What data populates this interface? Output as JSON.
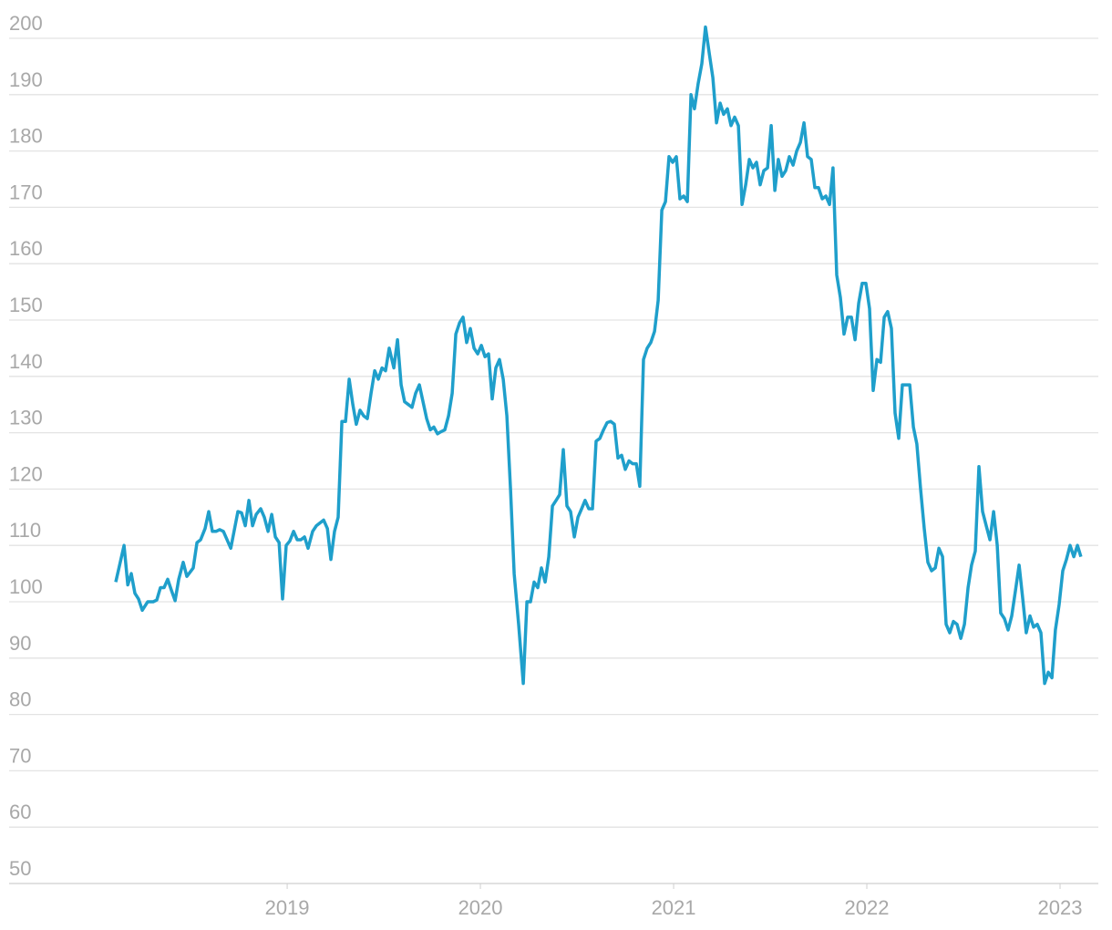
{
  "chart_data": {
    "type": "line",
    "x": [
      2018.113,
      2018.156,
      2018.175,
      2018.193,
      2018.212,
      2018.231,
      2018.25,
      2018.278,
      2018.307,
      2018.325,
      2018.344,
      2018.363,
      2018.382,
      2018.401,
      2018.42,
      2018.439,
      2018.462,
      2018.481,
      2018.514,
      2018.533,
      2018.552,
      2018.575,
      2018.594,
      2018.613,
      2018.632,
      2018.651,
      2018.67,
      2018.708,
      2018.745,
      2018.764,
      2018.783,
      2018.802,
      2018.821,
      2018.84,
      2018.863,
      2018.882,
      2018.901,
      2018.92,
      2018.939,
      2018.958,
      2018.976,
      2018.995,
      2019.014,
      2019.033,
      2019.052,
      2019.071,
      2019.09,
      2019.108,
      2019.132,
      2019.151,
      2019.17,
      2019.189,
      2019.208,
      2019.226,
      2019.245,
      2019.264,
      2019.283,
      2019.302,
      2019.321,
      2019.34,
      2019.358,
      2019.377,
      2019.396,
      2019.415,
      2019.434,
      2019.453,
      2019.472,
      2019.491,
      2019.509,
      2019.528,
      2019.552,
      2019.571,
      2019.59,
      2019.608,
      2019.627,
      2019.646,
      2019.665,
      2019.684,
      2019.703,
      2019.722,
      2019.741,
      2019.759,
      2019.778,
      2019.797,
      2019.816,
      2019.835,
      2019.854,
      2019.873,
      2019.892,
      2019.91,
      2019.929,
      2019.948,
      2019.967,
      2019.986,
      2020.005,
      2020.024,
      2020.042,
      2020.061,
      2020.08,
      2020.099,
      2020.118,
      2020.137,
      2020.156,
      2020.175,
      2020.198,
      2020.222,
      2020.241,
      2020.259,
      2020.278,
      2020.297,
      2020.316,
      2020.335,
      2020.354,
      2020.373,
      2020.392,
      2020.41,
      2020.429,
      2020.448,
      2020.467,
      2020.486,
      2020.505,
      2020.524,
      2020.542,
      2020.561,
      2020.58,
      2020.599,
      2020.618,
      2020.637,
      2020.656,
      2020.675,
      2020.693,
      2020.712,
      2020.731,
      2020.75,
      2020.769,
      2020.788,
      2020.807,
      2020.825,
      2020.844,
      2020.863,
      2020.882,
      2020.901,
      2020.92,
      2020.939,
      2020.958,
      2020.976,
      2020.995,
      2021.014,
      2021.033,
      2021.052,
      2021.071,
      2021.09,
      2021.108,
      2021.127,
      2021.146,
      2021.165,
      2021.184,
      2021.203,
      2021.222,
      2021.241,
      2021.259,
      2021.278,
      2021.297,
      2021.316,
      2021.335,
      2021.354,
      2021.373,
      2021.392,
      2021.41,
      2021.429,
      2021.448,
      2021.467,
      2021.486,
      2021.505,
      2021.524,
      2021.542,
      2021.561,
      2021.58,
      2021.599,
      2021.618,
      2021.637,
      2021.656,
      2021.675,
      2021.693,
      2021.712,
      2021.731,
      2021.75,
      2021.769,
      2021.788,
      2021.807,
      2021.825,
      2021.844,
      2021.863,
      2021.882,
      2021.901,
      2021.92,
      2021.939,
      2021.958,
      2021.976,
      2021.995,
      2022.014,
      2022.033,
      2022.052,
      2022.071,
      2022.09,
      2022.108,
      2022.127,
      2022.146,
      2022.165,
      2022.184,
      2022.203,
      2022.222,
      2022.241,
      2022.259,
      2022.278,
      2022.297,
      2022.316,
      2022.335,
      2022.354,
      2022.373,
      2022.392,
      2022.41,
      2022.429,
      2022.448,
      2022.467,
      2022.486,
      2022.505,
      2022.524,
      2022.542,
      2022.561,
      2022.58,
      2022.599,
      2022.618,
      2022.637,
      2022.656,
      2022.675,
      2022.693,
      2022.712,
      2022.731,
      2022.75,
      2022.769,
      2022.788,
      2022.807,
      2022.825,
      2022.844,
      2022.863,
      2022.882,
      2022.901,
      2022.92,
      2022.939,
      2022.958,
      2022.976,
      2022.995,
      2023.014,
      2023.033,
      2023.052,
      2023.071,
      2023.09,
      2023.108
    ],
    "values": [
      103.5,
      110,
      103,
      105,
      101.5,
      100.5,
      98.5,
      100,
      100,
      100.3,
      102.5,
      102.5,
      104,
      102,
      100.2,
      104,
      107,
      104.5,
      106,
      110.5,
      111,
      113,
      116,
      112.5,
      112.5,
      112.8,
      112.5,
      109.5,
      116,
      115.8,
      113.5,
      118,
      113.5,
      115.5,
      116.5,
      115,
      112.5,
      115.5,
      111.5,
      110.5,
      100.5,
      110,
      110.8,
      112.5,
      111,
      111,
      111.5,
      109.5,
      112.5,
      113.5,
      114,
      114.5,
      113,
      107.5,
      112.5,
      115,
      132,
      132,
      139.5,
      135,
      131.5,
      134,
      133,
      132.5,
      137,
      141,
      139.5,
      141.5,
      141,
      145,
      141.5,
      146.5,
      138.5,
      135.5,
      135,
      134.5,
      137,
      138.5,
      135.5,
      132.5,
      130.5,
      131,
      129.8,
      130.2,
      130.5,
      133,
      137,
      147.5,
      149.5,
      150.5,
      146,
      148.5,
      145,
      144,
      145.5,
      143.5,
      144,
      136,
      141.5,
      143,
      139.5,
      133,
      120,
      105,
      96,
      85.5,
      100,
      100,
      103.5,
      102.5,
      106,
      103.5,
      108,
      117,
      118,
      119,
      127,
      117,
      116,
      111.5,
      115,
      116.5,
      118,
      116.5,
      116.5,
      128.5,
      129,
      130.5,
      131.8,
      132,
      131.5,
      125.5,
      126,
      123.5,
      125,
      124.5,
      124.5,
      120.5,
      143,
      145,
      146,
      148,
      153.5,
      169.5,
      171,
      179,
      178,
      179,
      171.5,
      172,
      171,
      190,
      187.5,
      192,
      195.5,
      202,
      197.5,
      193,
      185,
      188.5,
      186.5,
      187.5,
      184.5,
      186,
      184.5,
      170.5,
      174,
      178.5,
      177,
      178,
      174,
      176.5,
      177,
      184.5,
      173,
      178.5,
      175.5,
      176.5,
      179,
      177.5,
      180,
      181.5,
      185,
      179,
      178.5,
      173.5,
      173.5,
      171.5,
      172,
      170.5,
      177,
      158,
      154,
      147.5,
      150.5,
      150.5,
      146.5,
      153,
      156.5,
      156.5,
      152,
      137.5,
      143,
      142.5,
      150.5,
      151.5,
      148.5,
      133.5,
      129,
      138.5,
      138.5,
      138.5,
      131,
      128,
      120,
      113,
      107,
      105.5,
      106,
      109.5,
      108,
      96,
      94.5,
      96.5,
      96,
      93.5,
      96,
      102.5,
      106.5,
      109,
      124,
      116,
      113.5,
      111,
      116,
      110,
      98,
      97,
      95,
      97.5,
      102,
      106.5,
      100.5,
      94.5,
      97.5,
      95.5,
      96,
      94.5,
      85.5,
      87.5,
      86.5,
      95,
      99.5,
      105.5,
      107.5,
      110,
      108,
      110,
      108
    ],
    "color": "#1f9fcb",
    "xlim": [
      2017.561,
      2023.198
    ],
    "xticks": [
      2019,
      2020,
      2021,
      2022,
      2023
    ],
    "ylim": [
      50,
      200
    ],
    "yticks": [
      50,
      60,
      70,
      80,
      90,
      100,
      110,
      120,
      130,
      140,
      150,
      160,
      170,
      180,
      190,
      200
    ],
    "grid": true
  }
}
